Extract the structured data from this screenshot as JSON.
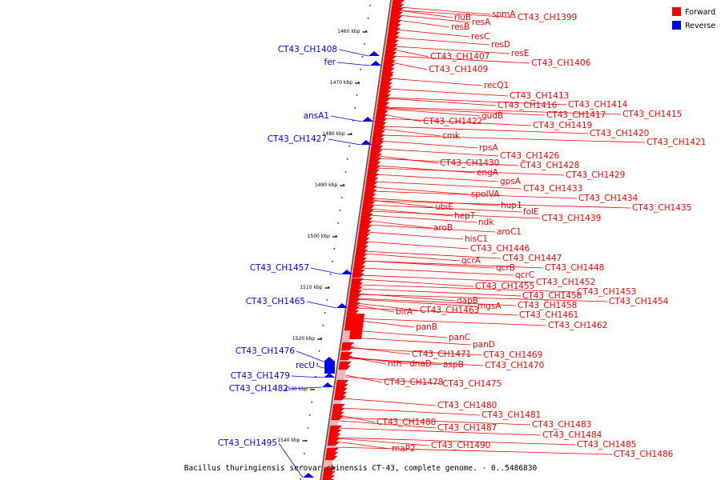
{
  "legend": {
    "forward": {
      "label": "Forward",
      "color": "#ff0000"
    },
    "reverse": {
      "label": "Reverse",
      "color": "#0000ff"
    }
  },
  "caption": "Bacillus thuringiensis serovar chinensis CT-43, complete genome. - 0..5486830",
  "scale_ticks": [
    "1460 kbp",
    "1470 kbp",
    "1480 kbp",
    "1490 kbp",
    "1500 kbp",
    "1510 kbp",
    "1520 kbp",
    "1530 kbp",
    "1540 kbp"
  ],
  "forward_genes": [
    "spmA",
    "CT43_CH1399",
    "rluB",
    "resA",
    "resB",
    "resC",
    "resD",
    "resE",
    "CT43_CH1407",
    "CT43_CH1406",
    "CT43_CH1409",
    "recQ1",
    "CT43_CH1413",
    "CT43_CH1416",
    "CT43_CH1414",
    "gudB",
    "CT43_CH1417",
    "CT43_CH1415",
    "CT43_CH1422",
    "CT43_CH1419",
    "CT43_CH1420",
    "CT43_CH1421",
    "cmk",
    "rpsA",
    "CT43_CH1426",
    "CT43_CH1430",
    "CT43_CH1428",
    "engA",
    "CT43_CH1429",
    "gpsA",
    "CT43_CH1433",
    "spoIVA",
    "CT43_CH1434",
    "hup1",
    "ubiE",
    "CT43_CH1435",
    "folE",
    "hepT",
    "CT43_CH1439",
    "ndk",
    "aroB",
    "aroC1",
    "hisC1",
    "CT43_CH1446",
    "CT43_CH1447",
    "qcrA",
    "qcrB",
    "CT43_CH1448",
    "qcrC",
    "CT43_CH1452",
    "CT43_CH1455",
    "CT43_CH1453",
    "CT43_CH1456",
    "dapB",
    "CT43_CH1454",
    "mgsA",
    "CT43_CH1458",
    "birA",
    "CT43_CH1463",
    "CT43_CH1461",
    "CT43_CH1462",
    "panB",
    "panC",
    "panD",
    "CT43_CH1471",
    "CT43_CH1469",
    "nth",
    "dnaD",
    "aspB",
    "CT43_CH1470",
    "CT43_CH1478",
    "CT43_CH1475",
    "CT43_CH1480",
    "CT43_CH1481",
    "CT43_CH1488",
    "CT43_CH1483",
    "CT43_CH1487",
    "CT43_CH1484",
    "CT43_CH1485",
    "maP2",
    "CT43_CH1490",
    "CT43_CH1486"
  ],
  "reverse_genes": [
    "CT43_CH1408",
    "fer",
    "ansA1",
    "CT43_CH1427",
    "CT43_CH1457",
    "CT43_CH1465",
    "CT43_CH1476",
    "recU",
    "CT43_CH1479",
    "CT43_CH1482",
    "CT43_CH1495"
  ]
}
